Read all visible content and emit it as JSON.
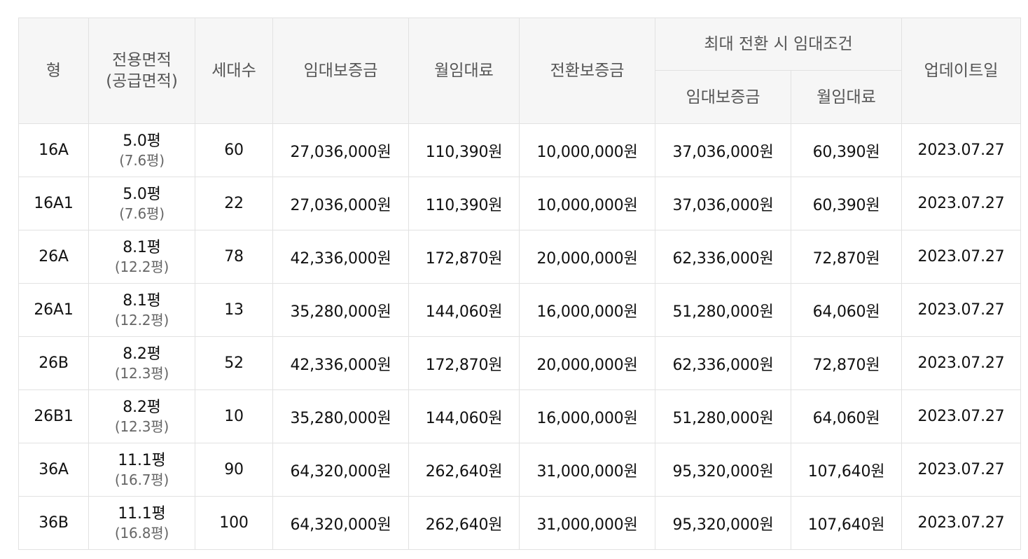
{
  "table": {
    "headers": {
      "type": "형",
      "area_main": "전용면적",
      "area_sub": "(공급면적)",
      "households": "세대수",
      "deposit": "임대보증금",
      "monthly": "월임대료",
      "conversion_deposit": "전환보증금",
      "max_group": "최대 전환 시 임대조건",
      "max_deposit": "임대보증금",
      "max_monthly": "월임대료",
      "updated": "업데이트일"
    },
    "rows": [
      {
        "type": "16A",
        "area": "5.0평",
        "supply": "(7.6평)",
        "households": "60",
        "deposit": "27,036,000원",
        "monthly": "110,390원",
        "conversion": "10,000,000원",
        "max_deposit": "37,036,000원",
        "max_monthly": "60,390원",
        "updated": "2023.07.27"
      },
      {
        "type": "16A1",
        "area": "5.0평",
        "supply": "(7.6평)",
        "households": "22",
        "deposit": "27,036,000원",
        "monthly": "110,390원",
        "conversion": "10,000,000원",
        "max_deposit": "37,036,000원",
        "max_monthly": "60,390원",
        "updated": "2023.07.27"
      },
      {
        "type": "26A",
        "area": "8.1평",
        "supply": "(12.2평)",
        "households": "78",
        "deposit": "42,336,000원",
        "monthly": "172,870원",
        "conversion": "20,000,000원",
        "max_deposit": "62,336,000원",
        "max_monthly": "72,870원",
        "updated": "2023.07.27"
      },
      {
        "type": "26A1",
        "area": "8.1평",
        "supply": "(12.2평)",
        "households": "13",
        "deposit": "35,280,000원",
        "monthly": "144,060원",
        "conversion": "16,000,000원",
        "max_deposit": "51,280,000원",
        "max_monthly": "64,060원",
        "updated": "2023.07.27"
      },
      {
        "type": "26B",
        "area": "8.2평",
        "supply": "(12.3평)",
        "households": "52",
        "deposit": "42,336,000원",
        "monthly": "172,870원",
        "conversion": "20,000,000원",
        "max_deposit": "62,336,000원",
        "max_monthly": "72,870원",
        "updated": "2023.07.27"
      },
      {
        "type": "26B1",
        "area": "8.2평",
        "supply": "(12.3평)",
        "households": "10",
        "deposit": "35,280,000원",
        "monthly": "144,060원",
        "conversion": "16,000,000원",
        "max_deposit": "51,280,000원",
        "max_monthly": "64,060원",
        "updated": "2023.07.27"
      },
      {
        "type": "36A",
        "area": "11.1평",
        "supply": "(16.7평)",
        "households": "90",
        "deposit": "64,320,000원",
        "monthly": "262,640원",
        "conversion": "31,000,000원",
        "max_deposit": "95,320,000원",
        "max_monthly": "107,640원",
        "updated": "2023.07.27"
      },
      {
        "type": "36B",
        "area": "11.1평",
        "supply": "(16.8평)",
        "households": "100",
        "deposit": "64,320,000원",
        "monthly": "262,640원",
        "conversion": "31,000,000원",
        "max_deposit": "95,320,000원",
        "max_monthly": "107,640원",
        "updated": "2023.07.27"
      }
    ]
  }
}
